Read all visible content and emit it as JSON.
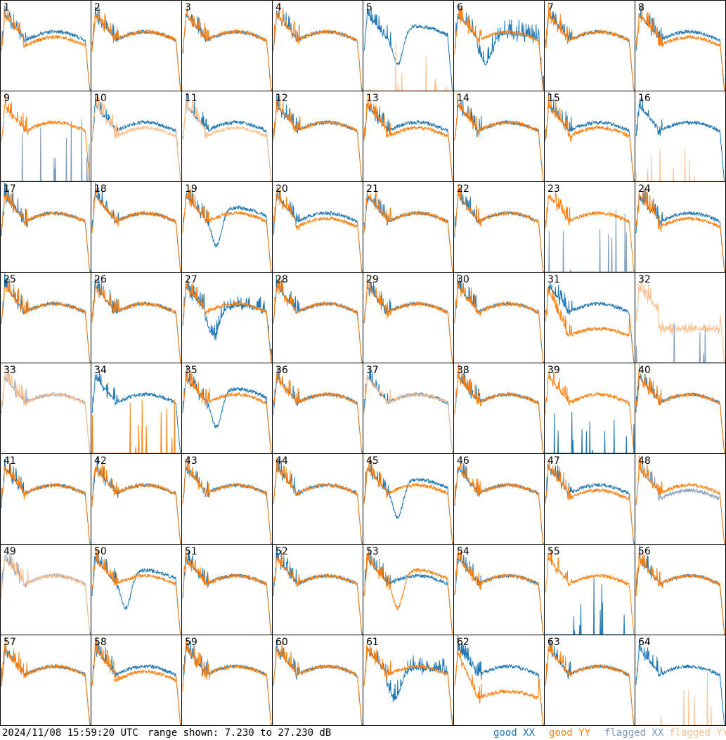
{
  "footer": {
    "timestamp": "2024/11/08 15:59:20 UTC",
    "range_text": "range shown: 7.230 to 27.230 dB"
  },
  "legend": [
    {
      "label": "good XX",
      "color": "#1f77b4"
    },
    {
      "label": "good YY",
      "color": "#ff7f0e"
    },
    {
      "label": "flagged XX",
      "color": "#7f9bb8"
    },
    {
      "label": "flagged YY",
      "color": "#ffc08f"
    }
  ],
  "chart_data": {
    "type": "line",
    "grid": "8x8",
    "ylim": [
      7.23,
      27.23
    ],
    "colors": {
      "good_xx": "#1f77b4",
      "good_yy": "#ff7f0e",
      "flagged_xx": "#7f9bb8",
      "flagged_yy": "#ffc08f"
    },
    "panels": [
      {
        "label": "1",
        "xx": "good",
        "yy": "good",
        "xx_profile": "std",
        "yy_profile": "lowmid"
      },
      {
        "label": "2",
        "xx": "good",
        "yy": "good",
        "xx_profile": "std",
        "yy_profile": "std"
      },
      {
        "label": "3",
        "xx": "good",
        "yy": "good",
        "xx_profile": "std",
        "yy_profile": "std"
      },
      {
        "label": "4",
        "xx": "good",
        "yy": "good",
        "xx_profile": "std",
        "yy_profile": "std"
      },
      {
        "label": "5",
        "xx": "good",
        "yy": "flagged",
        "xx_profile": "dip",
        "yy_profile": "dead"
      },
      {
        "label": "6",
        "xx": "good",
        "yy": "good",
        "xx_profile": "noisy_dip",
        "yy_profile": "std"
      },
      {
        "label": "7",
        "xx": "good",
        "yy": "good",
        "xx_profile": "std",
        "yy_profile": "std"
      },
      {
        "label": "8",
        "xx": "good",
        "yy": "good",
        "xx_profile": "std",
        "yy_profile": "lowmid"
      },
      {
        "label": "9",
        "xx": "flagged",
        "yy": "good",
        "xx_profile": "dead",
        "yy_profile": "std"
      },
      {
        "label": "10",
        "xx": "good",
        "yy": "flagged",
        "xx_profile": "std",
        "yy_profile": "lowmid"
      },
      {
        "label": "11",
        "xx": "good",
        "yy": "flagged",
        "xx_profile": "std",
        "yy_profile": "lowmid"
      },
      {
        "label": "12",
        "xx": "good",
        "yy": "good",
        "xx_profile": "std",
        "yy_profile": "std"
      },
      {
        "label": "13",
        "xx": "good",
        "yy": "good",
        "xx_profile": "std",
        "yy_profile": "lowmid"
      },
      {
        "label": "14",
        "xx": "good",
        "yy": "good",
        "xx_profile": "std",
        "yy_profile": "std"
      },
      {
        "label": "15",
        "xx": "good",
        "yy": "good",
        "xx_profile": "std",
        "yy_profile": "lowmid"
      },
      {
        "label": "16",
        "xx": "good",
        "yy": "flagged",
        "xx_profile": "std",
        "yy_profile": "dead"
      },
      {
        "label": "17",
        "xx": "good",
        "yy": "good",
        "xx_profile": "std",
        "yy_profile": "std"
      },
      {
        "label": "18",
        "xx": "good",
        "yy": "good",
        "xx_profile": "std",
        "yy_profile": "std"
      },
      {
        "label": "19",
        "xx": "good",
        "yy": "good",
        "xx_profile": "dip",
        "yy_profile": "std"
      },
      {
        "label": "20",
        "xx": "good",
        "yy": "good",
        "xx_profile": "std",
        "yy_profile": "lowmid"
      },
      {
        "label": "21",
        "xx": "good",
        "yy": "good",
        "xx_profile": "std",
        "yy_profile": "std"
      },
      {
        "label": "22",
        "xx": "good",
        "yy": "good",
        "xx_profile": "std",
        "yy_profile": "std"
      },
      {
        "label": "23",
        "xx": "flagged",
        "yy": "good",
        "xx_profile": "dead",
        "yy_profile": "std"
      },
      {
        "label": "24",
        "xx": "good",
        "yy": "good",
        "xx_profile": "std",
        "yy_profile": "lowmid"
      },
      {
        "label": "25",
        "xx": "good",
        "yy": "good",
        "xx_profile": "std",
        "yy_profile": "std"
      },
      {
        "label": "26",
        "xx": "good",
        "yy": "good",
        "xx_profile": "std",
        "yy_profile": "std"
      },
      {
        "label": "27",
        "xx": "good",
        "yy": "good",
        "xx_profile": "noisy_dip",
        "yy_profile": "std"
      },
      {
        "label": "28",
        "xx": "good",
        "yy": "good",
        "xx_profile": "std",
        "yy_profile": "std"
      },
      {
        "label": "29",
        "xx": "good",
        "yy": "good",
        "xx_profile": "std",
        "yy_profile": "std"
      },
      {
        "label": "30",
        "xx": "good",
        "yy": "good",
        "xx_profile": "std",
        "yy_profile": "std"
      },
      {
        "label": "31",
        "xx": "good",
        "yy": "good",
        "xx_profile": "std",
        "yy_profile": "low"
      },
      {
        "label": "32",
        "xx": "flagged",
        "yy": "flagged",
        "xx_profile": "dead",
        "yy_profile": "noisylow"
      },
      {
        "label": "33",
        "xx": "flagged",
        "yy": "flagged",
        "xx_profile": "std",
        "yy_profile": "std"
      },
      {
        "label": "34",
        "xx": "good",
        "yy": "good",
        "xx_profile": "std",
        "yy_profile": "dead"
      },
      {
        "label": "35",
        "xx": "good",
        "yy": "good",
        "xx_profile": "dip",
        "yy_profile": "std"
      },
      {
        "label": "36",
        "xx": "good",
        "yy": "good",
        "xx_profile": "std",
        "yy_profile": "std"
      },
      {
        "label": "37",
        "xx": "good",
        "yy": "flagged",
        "xx_profile": "std",
        "yy_profile": "std"
      },
      {
        "label": "38",
        "xx": "good",
        "yy": "good",
        "xx_profile": "std",
        "yy_profile": "std"
      },
      {
        "label": "39",
        "xx": "good",
        "yy": "good",
        "xx_profile": "dead",
        "yy_profile": "std"
      },
      {
        "label": "40",
        "xx": "good",
        "yy": "good",
        "xx_profile": "std",
        "yy_profile": "std"
      },
      {
        "label": "41",
        "xx": "good",
        "yy": "good",
        "xx_profile": "std",
        "yy_profile": "std"
      },
      {
        "label": "42",
        "xx": "good",
        "yy": "good",
        "xx_profile": "std",
        "yy_profile": "std"
      },
      {
        "label": "43",
        "xx": "good",
        "yy": "good",
        "xx_profile": "std",
        "yy_profile": "std"
      },
      {
        "label": "44",
        "xx": "good",
        "yy": "good",
        "xx_profile": "std",
        "yy_profile": "std"
      },
      {
        "label": "45",
        "xx": "good",
        "yy": "good",
        "xx_profile": "dip",
        "yy_profile": "std"
      },
      {
        "label": "46",
        "xx": "good",
        "yy": "good",
        "xx_profile": "std",
        "yy_profile": "std"
      },
      {
        "label": "47",
        "xx": "good",
        "yy": "good",
        "xx_profile": "std",
        "yy_profile": "lowmid"
      },
      {
        "label": "48",
        "xx": "flagged",
        "yy": "good",
        "xx_profile": "lowmid",
        "yy_profile": "std"
      },
      {
        "label": "49",
        "xx": "flagged",
        "yy": "flagged",
        "xx_profile": "std",
        "yy_profile": "std"
      },
      {
        "label": "50",
        "xx": "good",
        "yy": "good",
        "xx_profile": "dip",
        "yy_profile": "std"
      },
      {
        "label": "51",
        "xx": "good",
        "yy": "good",
        "xx_profile": "std",
        "yy_profile": "std"
      },
      {
        "label": "52",
        "xx": "good",
        "yy": "good",
        "xx_profile": "std",
        "yy_profile": "std"
      },
      {
        "label": "53",
        "xx": "good",
        "yy": "good",
        "xx_profile": "std",
        "yy_profile": "dip"
      },
      {
        "label": "54",
        "xx": "good",
        "yy": "good",
        "xx_profile": "std",
        "yy_profile": "std"
      },
      {
        "label": "55",
        "xx": "good",
        "yy": "good",
        "xx_profile": "dead",
        "yy_profile": "std"
      },
      {
        "label": "56",
        "xx": "good",
        "yy": "good",
        "xx_profile": "std",
        "yy_profile": "std"
      },
      {
        "label": "57",
        "xx": "good",
        "yy": "good",
        "xx_profile": "std",
        "yy_profile": "std"
      },
      {
        "label": "58",
        "xx": "good",
        "yy": "good",
        "xx_profile": "std",
        "yy_profile": "lowmid"
      },
      {
        "label": "59",
        "xx": "good",
        "yy": "good",
        "xx_profile": "std",
        "yy_profile": "std"
      },
      {
        "label": "60",
        "xx": "good",
        "yy": "good",
        "xx_profile": "std",
        "yy_profile": "std"
      },
      {
        "label": "61",
        "xx": "good",
        "yy": "good",
        "xx_profile": "noisy_dip",
        "yy_profile": "std"
      },
      {
        "label": "62",
        "xx": "good",
        "yy": "good",
        "xx_profile": "std",
        "yy_profile": "low"
      },
      {
        "label": "63",
        "xx": "good",
        "yy": "good",
        "xx_profile": "std",
        "yy_profile": "std"
      },
      {
        "label": "64",
        "xx": "good",
        "yy": "flagged",
        "xx_profile": "std",
        "yy_profile": "dead"
      }
    ]
  }
}
